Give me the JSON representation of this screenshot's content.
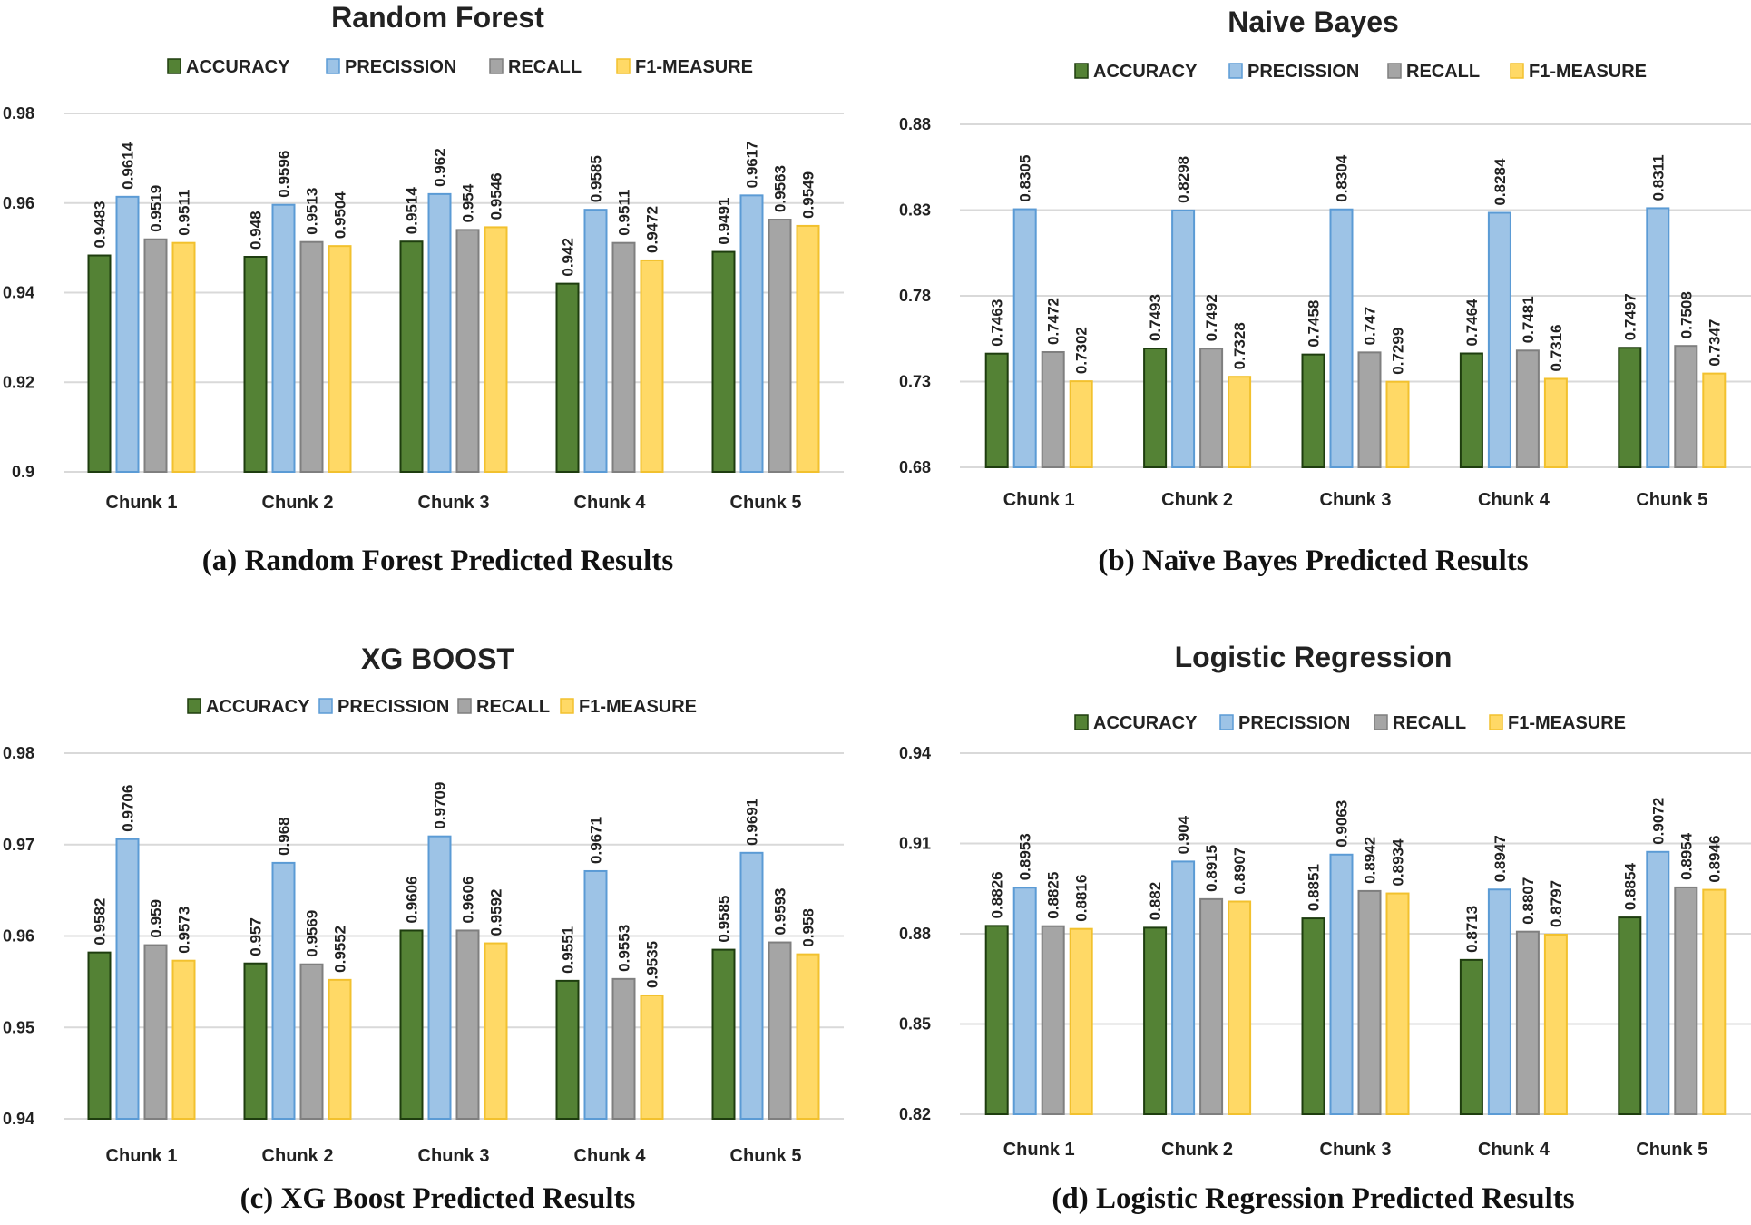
{
  "series_names": [
    "ACCURACY",
    "PRECISSION",
    "RECALL",
    "F1-MEASURE"
  ],
  "colors": {
    "accuracy": "#548235",
    "precission": "#9dc3e6",
    "recall": "#a5a5a5",
    "f1": "#ffd966",
    "accuracy_stroke": "#1e3d0f",
    "precission_stroke": "#5b9bd5",
    "recall_stroke": "#7f7f7f",
    "f1_stroke": "#f2c12e",
    "grid": "#d9d9d9"
  },
  "captions": [
    {
      "tag": "(a)",
      "text": "Random Forest Predicted Results"
    },
    {
      "tag": "(b)",
      "text": "Naïve Bayes Predicted Results"
    },
    {
      "tag": "(c)",
      "text": "XG Boost Predicted Results"
    },
    {
      "tag": "(d)",
      "text": "Logistic Regression Predicted Results"
    }
  ],
  "chart_data": [
    {
      "type": "bar",
      "title": "Random Forest",
      "categories": [
        "Chunk 1",
        "Chunk 2",
        "Chunk 3",
        "Chunk 4",
        "Chunk 5"
      ],
      "ylim": [
        0.9,
        0.98
      ],
      "yticks": [
        "0.98",
        "0.96",
        "0.94",
        "0.92",
        "0.9"
      ],
      "series": [
        {
          "name": "ACCURACY",
          "values": [
            0.9483,
            0.948,
            0.9514,
            0.942,
            0.9491
          ],
          "labels": [
            "0.9483",
            "0.948",
            "0.9514",
            "0.942",
            "0.9491"
          ]
        },
        {
          "name": "PRECISSION",
          "values": [
            0.9614,
            0.9596,
            0.962,
            0.9585,
            0.9617
          ],
          "labels": [
            "0.9614",
            "0.9596",
            "0.962",
            "0.9585",
            "0.9617"
          ]
        },
        {
          "name": "RECALL",
          "values": [
            0.9519,
            0.9513,
            0.954,
            0.9511,
            0.9563
          ],
          "labels": [
            "0.9519",
            "0.9513",
            "0.954",
            "0.9511",
            "0.9563"
          ]
        },
        {
          "name": "F1-MEASURE",
          "values": [
            0.9511,
            0.9504,
            0.9546,
            0.9472,
            0.9549
          ],
          "labels": [
            "0.9511",
            "0.9504",
            "0.9546",
            "0.9472",
            "0.9549"
          ]
        }
      ]
    },
    {
      "type": "bar",
      "title": "Naive Bayes",
      "categories": [
        "Chunk 1",
        "Chunk 2",
        "Chunk 3",
        "Chunk 4",
        "Chunk 5"
      ],
      "ylim": [
        0.68,
        0.88
      ],
      "yticks": [
        "0.88",
        "0.83",
        "0.78",
        "0.73",
        "0.68"
      ],
      "series": [
        {
          "name": "ACCURACY",
          "values": [
            0.7463,
            0.7493,
            0.7458,
            0.7464,
            0.7497
          ],
          "labels": [
            "0.7463",
            "0.7493",
            "0.7458",
            "0.7464",
            "0.7497"
          ]
        },
        {
          "name": "PRECISSION",
          "values": [
            0.8305,
            0.8298,
            0.8304,
            0.8284,
            0.8311
          ],
          "labels": [
            "0.8305",
            "0.8298",
            "0.8304",
            "0.8284",
            "0.8311"
          ]
        },
        {
          "name": "RECALL",
          "values": [
            0.7472,
            0.7492,
            0.747,
            0.7481,
            0.7508
          ],
          "labels": [
            "0.7472",
            "0.7492",
            "0.747",
            "0.7481",
            "0.7508"
          ]
        },
        {
          "name": "F1-MEASURE",
          "values": [
            0.7302,
            0.7328,
            0.7299,
            0.7316,
            0.7347
          ],
          "labels": [
            "0.7302",
            "0.7328",
            "0.7299",
            "0.7316",
            "0.7347"
          ]
        }
      ]
    },
    {
      "type": "bar",
      "title": "XG BOOST",
      "categories": [
        "Chunk 1",
        "Chunk 2",
        "Chunk 3",
        "Chunk 4",
        "Chunk 5"
      ],
      "ylim": [
        0.94,
        0.98
      ],
      "yticks": [
        "0.98",
        "0.97",
        "0.96",
        "0.95",
        "0.94"
      ],
      "series": [
        {
          "name": "ACCURACY",
          "values": [
            0.9582,
            0.957,
            0.9606,
            0.9551,
            0.9585
          ],
          "labels": [
            "0.9582",
            "0.957",
            "0.9606",
            "0.9551",
            "0.9585"
          ]
        },
        {
          "name": "PRECISSION",
          "values": [
            0.9706,
            0.968,
            0.9709,
            0.9671,
            0.9691
          ],
          "labels": [
            "0.9706",
            "0.968",
            "0.9709",
            "0.9671",
            "0.9691"
          ]
        },
        {
          "name": "RECALL",
          "values": [
            0.959,
            0.9569,
            0.9606,
            0.9553,
            0.9593
          ],
          "labels": [
            "0.959",
            "0.9569",
            "0.9606",
            "0.9553",
            "0.9593"
          ]
        },
        {
          "name": "F1-MEASURE",
          "values": [
            0.9573,
            0.9552,
            0.9592,
            0.9535,
            0.958
          ],
          "labels": [
            "0.9573",
            "0.9552",
            "0.9592",
            "0.9535",
            "0.958"
          ]
        }
      ]
    },
    {
      "type": "bar",
      "title": "Logistic Regression",
      "categories": [
        "Chunk 1",
        "Chunk 2",
        "Chunk 3",
        "Chunk 4",
        "Chunk 5"
      ],
      "ylim": [
        0.82,
        0.94
      ],
      "yticks": [
        "0.94",
        "0.91",
        "0.88",
        "0.85",
        "0.82"
      ],
      "series": [
        {
          "name": "ACCURACY",
          "values": [
            0.8826,
            0.882,
            0.8851,
            0.8713,
            0.8854
          ],
          "labels": [
            "0.8826",
            "0.882",
            "0.8851",
            "0.8713",
            "0.8854"
          ]
        },
        {
          "name": "PRECISSION",
          "values": [
            0.8953,
            0.904,
            0.9063,
            0.8947,
            0.9072
          ],
          "labels": [
            "0.8953",
            "0.904",
            "0.9063",
            "0.8947",
            "0.9072"
          ]
        },
        {
          "name": "RECALL",
          "values": [
            0.8825,
            0.8915,
            0.8942,
            0.8807,
            0.8954
          ],
          "labels": [
            "0.8825",
            "0.8915",
            "0.8942",
            "0.8807",
            "0.8954"
          ]
        },
        {
          "name": "F1-MEASURE",
          "values": [
            0.8816,
            0.8907,
            0.8934,
            0.8797,
            0.8946
          ],
          "labels": [
            "0.8816",
            "0.8907",
            "0.8934",
            "0.8797",
            "0.8946"
          ]
        }
      ]
    }
  ]
}
